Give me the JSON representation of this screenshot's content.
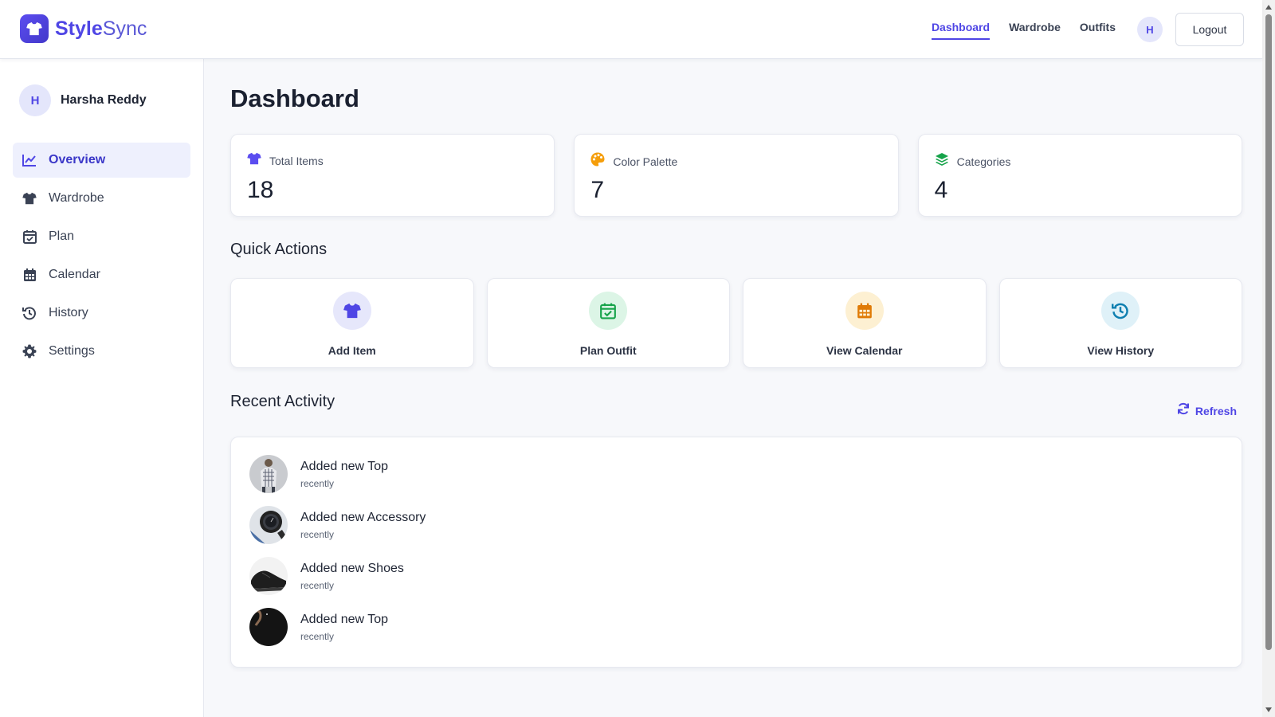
{
  "brand": {
    "name_bold": "Style",
    "name_light": "Sync",
    "logo_icon": "shirt-icon"
  },
  "colors": {
    "accent": "#4f46e5",
    "green": "#16a34a",
    "orange": "#f59e0b",
    "teal": "#0891b2"
  },
  "topnav": {
    "links": [
      {
        "label": "Dashboard",
        "active": true
      },
      {
        "label": "Wardrobe",
        "active": false
      },
      {
        "label": "Outfits",
        "active": false
      }
    ],
    "avatar_initial": "H",
    "logout_label": "Logout"
  },
  "sidebar": {
    "user": {
      "initial": "H",
      "name": "Harsha Reddy"
    },
    "items": [
      {
        "label": "Overview",
        "icon": "chart-line-icon",
        "active": true
      },
      {
        "label": "Wardrobe",
        "icon": "shirt-icon",
        "active": false
      },
      {
        "label": "Plan",
        "icon": "calendar-check-icon",
        "active": false
      },
      {
        "label": "Calendar",
        "icon": "calendar-icon",
        "active": false
      },
      {
        "label": "History",
        "icon": "history-icon",
        "active": false
      },
      {
        "label": "Settings",
        "icon": "gear-icon",
        "active": false
      }
    ]
  },
  "main": {
    "title": "Dashboard",
    "stats": [
      {
        "label": "Total Items",
        "value": "18",
        "icon": "shirt-icon"
      },
      {
        "label": "Color Palette",
        "value": "7",
        "icon": "palette-icon"
      },
      {
        "label": "Categories",
        "value": "4",
        "icon": "layers-icon"
      }
    ],
    "quick_actions_title": "Quick Actions",
    "quick_actions": [
      {
        "label": "Add Item",
        "icon": "shirt-icon"
      },
      {
        "label": "Plan Outfit",
        "icon": "calendar-check-icon"
      },
      {
        "label": "View Calendar",
        "icon": "calendar-icon"
      },
      {
        "label": "View History",
        "icon": "history-icon"
      }
    ],
    "recent_activity_title": "Recent Activity",
    "refresh_label": "Refresh",
    "activity": [
      {
        "title": "Added new Top",
        "time": "recently",
        "thumb": "checked-shirt-thumbnail"
      },
      {
        "title": "Added new Accessory",
        "time": "recently",
        "thumb": "watch-thumbnail"
      },
      {
        "title": "Added new Shoes",
        "time": "recently",
        "thumb": "shoes-thumbnail"
      },
      {
        "title": "Added new Top",
        "time": "recently",
        "thumb": "black-top-thumbnail"
      }
    ]
  }
}
